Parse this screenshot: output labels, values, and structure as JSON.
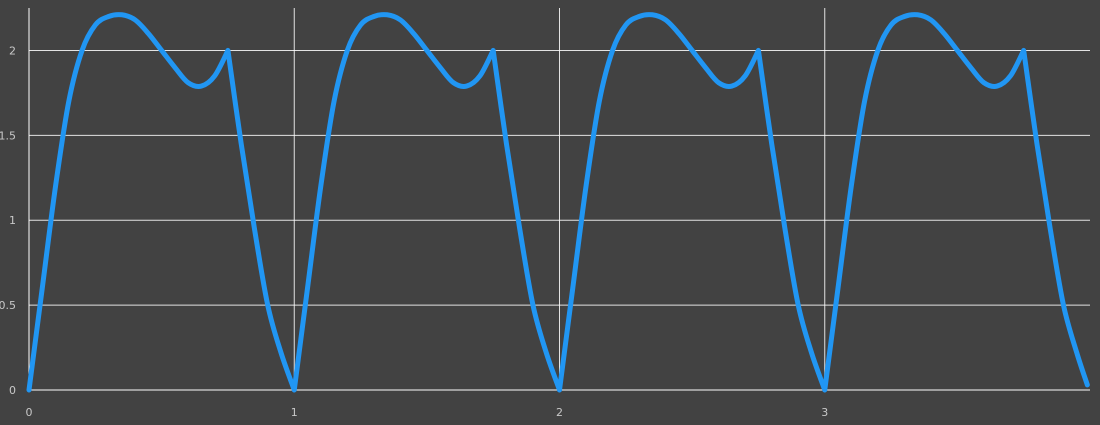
{
  "chart_data": {
    "type": "line",
    "title": "",
    "xlabel": "",
    "ylabel": "",
    "xlim": [
      0,
      4
    ],
    "ylim": [
      0,
      2.25
    ],
    "grid": true,
    "x_ticks": [
      0,
      1,
      2,
      3
    ],
    "x_tick_labels": [
      "0",
      "1",
      "2",
      "3"
    ],
    "y_ticks": [
      0,
      0.5,
      1,
      1.5,
      2
    ],
    "y_tick_labels": [
      "0",
      "0.5",
      "1",
      "1.5",
      "2"
    ],
    "line_color": "#2196f3",
    "background_color": "#424242",
    "series": [
      {
        "x": [
          0,
          0.05,
          0.1,
          0.15,
          0.2,
          0.25,
          0.3,
          0.35,
          0.4,
          0.45,
          0.5,
          0.55,
          0.6,
          0.65,
          0.7,
          0.75,
          0.8,
          0.85,
          0.9,
          0.95,
          1,
          1.05,
          1.1,
          1.15,
          1.2,
          1.25,
          1.3,
          1.35,
          1.4,
          1.45,
          1.5,
          1.55,
          1.6,
          1.65,
          1.7,
          1.75,
          1.8,
          1.85,
          1.9,
          1.95,
          2,
          2.05,
          2.1,
          2.15,
          2.2,
          2.25,
          2.3,
          2.35,
          2.4,
          2.45,
          2.5,
          2.55,
          2.6,
          2.65,
          2.7,
          2.75,
          2.8,
          2.85,
          2.9,
          2.95,
          3,
          3.05,
          3.1,
          3.15,
          3.2,
          3.25,
          3.3,
          3.35,
          3.4,
          3.45,
          3.5,
          3.55,
          3.6,
          3.65,
          3.7,
          3.75,
          3.8,
          3.85,
          3.9,
          3.95,
          3.99
        ],
        "y": [
          0,
          0.6,
          1.2,
          1.7,
          2.0,
          2.15,
          2.2,
          2.21,
          2.18,
          2.1,
          2.0,
          1.9,
          1.81,
          1.79,
          1.85,
          2.0,
          1.45,
          0.95,
          0.5,
          0.22,
          0,
          0.6,
          1.2,
          1.7,
          2.0,
          2.15,
          2.2,
          2.21,
          2.18,
          2.1,
          2.0,
          1.9,
          1.81,
          1.79,
          1.85,
          2.0,
          1.45,
          0.95,
          0.5,
          0.22,
          0,
          0.6,
          1.2,
          1.7,
          2.0,
          2.15,
          2.2,
          2.21,
          2.18,
          2.1,
          2.0,
          1.9,
          1.81,
          1.79,
          1.85,
          2.0,
          1.45,
          0.95,
          0.5,
          0.22,
          0,
          0.6,
          1.2,
          1.7,
          2.0,
          2.15,
          2.2,
          2.21,
          2.18,
          2.1,
          2.0,
          1.9,
          1.81,
          1.79,
          1.85,
          2.0,
          1.45,
          0.95,
          0.5,
          0.22,
          0.03
        ]
      }
    ]
  }
}
